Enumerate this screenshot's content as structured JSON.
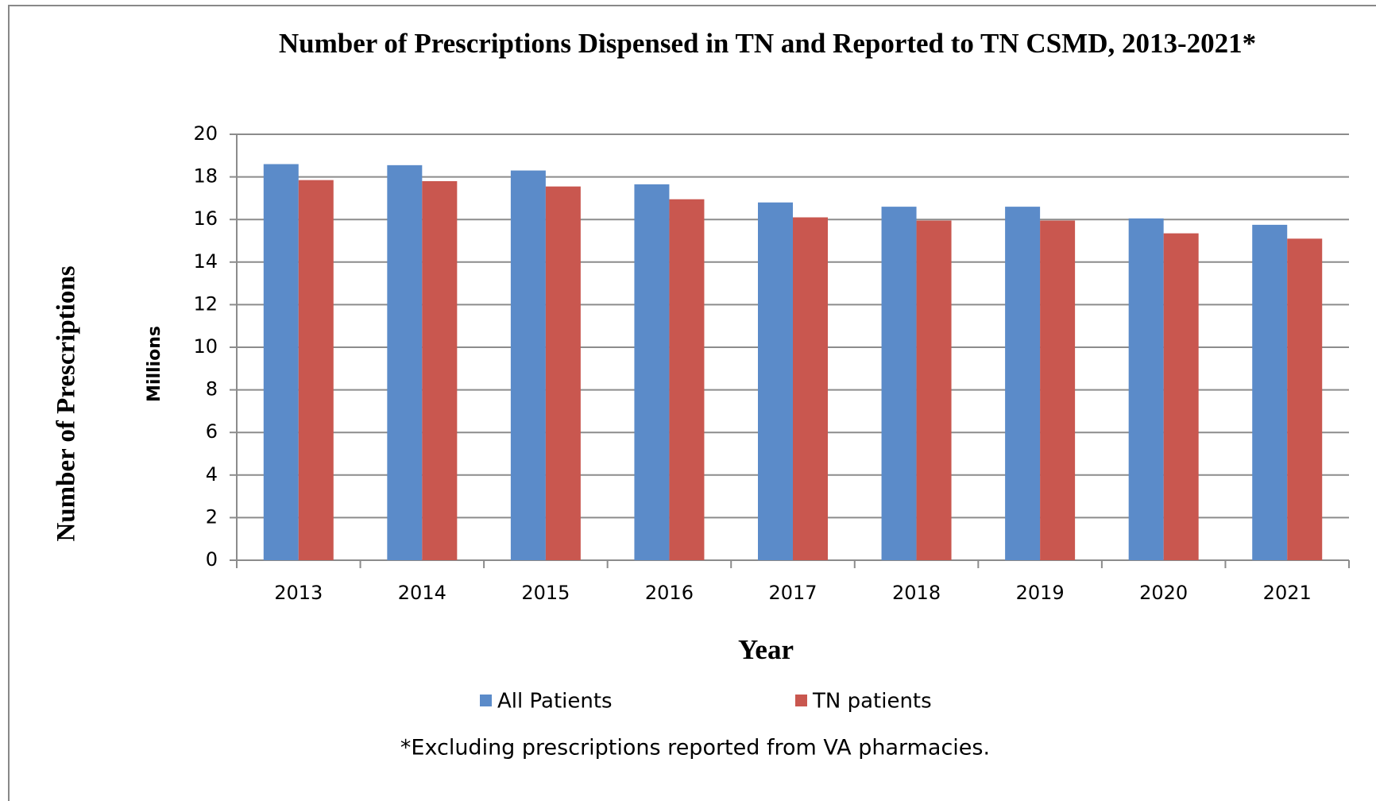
{
  "chart_data": {
    "type": "bar",
    "title": "Number of Prescriptions Dispensed in TN and Reported to TN CSMD, 2013-2021*",
    "y_label": "Number of Prescriptions",
    "y_unit_label": "Millions",
    "x_label": "Year",
    "footnote": "*Excluding prescriptions reported from VA pharmacies.",
    "categories": [
      "2013",
      "2014",
      "2015",
      "2016",
      "2017",
      "2018",
      "2019",
      "2020",
      "2021"
    ],
    "series": [
      {
        "name": "All Patients",
        "color": "#5b8bc9",
        "values": [
          18.6,
          18.55,
          18.3,
          17.65,
          16.8,
          16.6,
          16.6,
          16.05,
          15.75
        ]
      },
      {
        "name": "TN patients",
        "color": "#c9574f",
        "values": [
          17.85,
          17.8,
          17.55,
          16.95,
          16.1,
          15.95,
          15.95,
          15.35,
          15.1
        ]
      }
    ],
    "ylim": [
      0,
      20
    ],
    "yticks": [
      0,
      2,
      4,
      6,
      8,
      10,
      12,
      14,
      16,
      18,
      20
    ],
    "grid": true,
    "legend": "bottom"
  }
}
